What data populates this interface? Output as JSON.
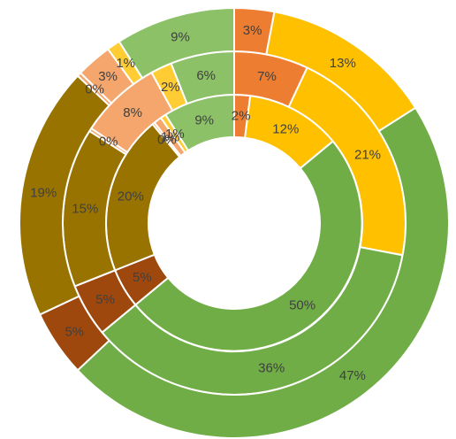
{
  "chart_data": {
    "type": "pie",
    "subtype": "multi-level doughnut",
    "title": "",
    "legend": "none",
    "colors": {
      "orange": "#ed7d31",
      "yellow": "#ffc000",
      "green": "#70ad47",
      "brown_red": "#9e480e",
      "dark_olive": "#997300",
      "light_orange": "#f4a66c",
      "light_yellow": "#ffcd33",
      "light_green": "#8cc168"
    },
    "series": [
      {
        "ring": "inner",
        "slices": [
          {
            "label": "2%",
            "value": 2,
            "color": "orange"
          },
          {
            "label": "12%",
            "value": 12,
            "color": "yellow"
          },
          {
            "label": "50%",
            "value": 50,
            "color": "green"
          },
          {
            "label": "5%",
            "value": 5,
            "color": "brown_red"
          },
          {
            "label": "20%",
            "value": 20,
            "color": "dark_olive"
          },
          {
            "label": "0%",
            "value": 0.3,
            "color": "light_orange"
          },
          {
            "label": "1%",
            "value": 1,
            "color": "light_orange"
          },
          {
            "label": "1%",
            "value": 0.7,
            "color": "light_yellow"
          },
          {
            "label": "9%",
            "value": 9,
            "color": "light_green"
          }
        ]
      },
      {
        "ring": "middle",
        "slices": [
          {
            "label": "7%",
            "value": 7,
            "color": "orange"
          },
          {
            "label": "21%",
            "value": 21,
            "color": "yellow"
          },
          {
            "label": "36%",
            "value": 36,
            "color": "green"
          },
          {
            "label": "5%",
            "value": 5,
            "color": "brown_red"
          },
          {
            "label": "15%",
            "value": 15,
            "color": "dark_olive"
          },
          {
            "label": "0%",
            "value": 0.3,
            "color": "light_orange"
          },
          {
            "label": "8%",
            "value": 7.7,
            "color": "light_orange"
          },
          {
            "label": "2%",
            "value": 2,
            "color": "light_yellow"
          },
          {
            "label": "6%",
            "value": 6,
            "color": "light_green"
          }
        ]
      },
      {
        "ring": "outer",
        "slices": [
          {
            "label": "3%",
            "value": 3,
            "color": "orange"
          },
          {
            "label": "13%",
            "value": 13,
            "color": "yellow"
          },
          {
            "label": "47%",
            "value": 47,
            "color": "green"
          },
          {
            "label": "5%",
            "value": 5,
            "color": "brown_red"
          },
          {
            "label": "19%",
            "value": 19,
            "color": "dark_olive"
          },
          {
            "label": "0%",
            "value": 0.3,
            "color": "light_orange"
          },
          {
            "label": "3%",
            "value": 2.7,
            "color": "light_orange"
          },
          {
            "label": "1%",
            "value": 1,
            "color": "light_yellow"
          },
          {
            "label": "9%",
            "value": 9,
            "color": "light_green"
          }
        ]
      }
    ]
  }
}
